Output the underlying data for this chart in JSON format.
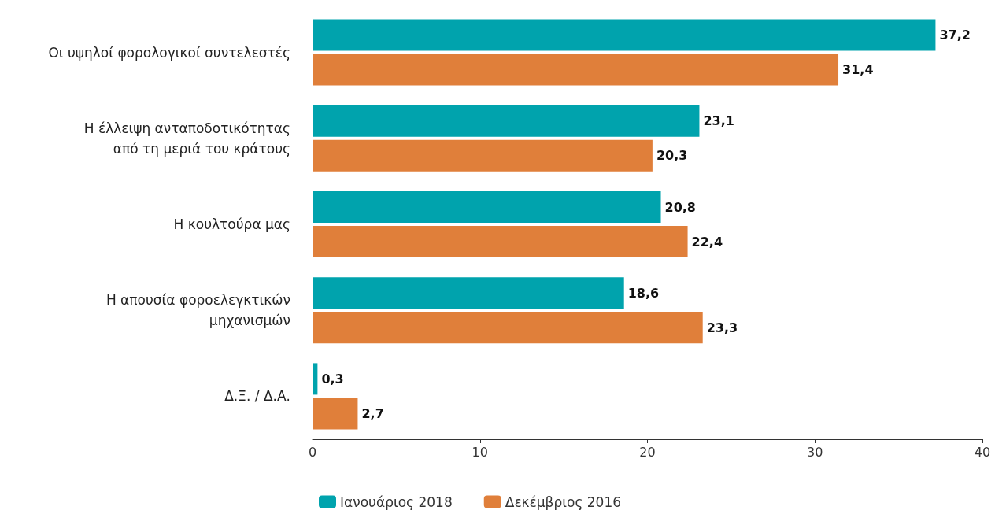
{
  "chart_data": {
    "type": "bar",
    "orientation": "horizontal",
    "categories": [
      "Οι υψηλοί φορολογικοί συντελεστές",
      "Η έλλειψη ανταποδοτικότητας\nαπό τη μεριά του κράτους",
      "Η κουλτούρα μας",
      "Η απουσία φοροελεγκτικών\nμηχανισμών",
      "Δ.Ξ. / Δ.Α."
    ],
    "series": [
      {
        "name": "Ιανουάριος 2018",
        "color": "#00a3ad",
        "values": [
          37.2,
          23.1,
          20.8,
          18.6,
          0.3
        ],
        "value_labels": [
          "37,2",
          "23,1",
          "20,8",
          "18,6",
          "0,3"
        ]
      },
      {
        "name": "Δεκέμβριος 2016",
        "color": "#e07f3a",
        "values": [
          31.4,
          20.3,
          22.4,
          23.3,
          2.7
        ],
        "value_labels": [
          "31,4",
          "20,3",
          "22,4",
          "23,3",
          "2,7"
        ]
      }
    ],
    "xlim": [
      0,
      40
    ],
    "xticks": [
      0,
      10,
      20,
      30,
      40
    ],
    "grid": false,
    "legend": "bottom left"
  }
}
